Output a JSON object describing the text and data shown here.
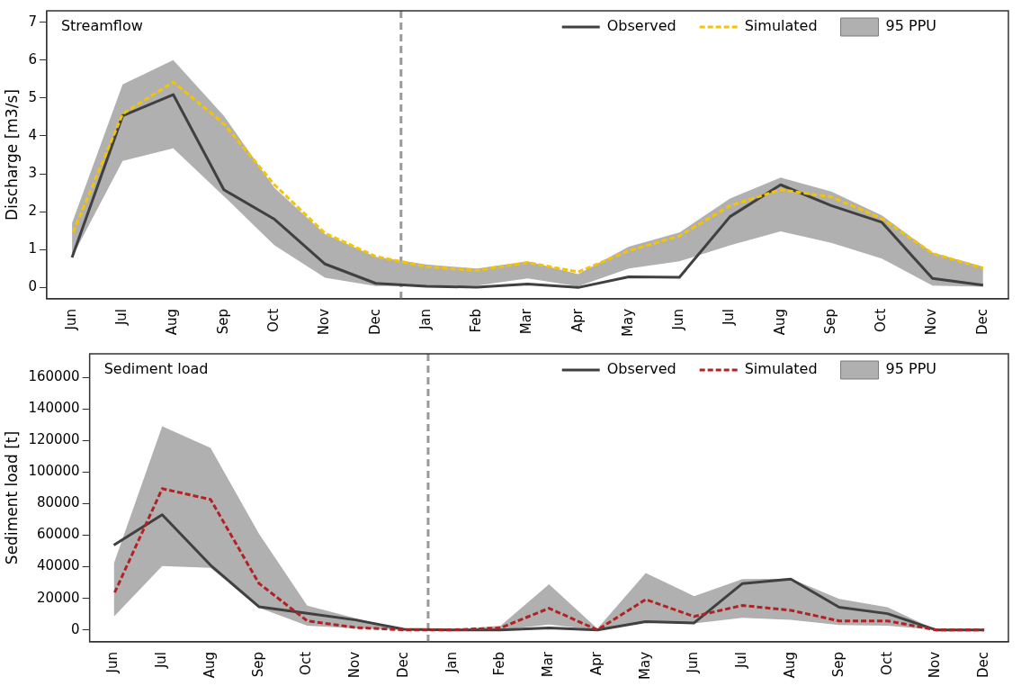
{
  "chart_data": [
    {
      "type": "line",
      "title": "Streamflow",
      "ylabel": "Discharge [m3/s]",
      "categories": [
        "Jun",
        "Jul",
        "Aug",
        "Sep",
        "Oct",
        "Nov",
        "Dec",
        "Jan",
        "Feb",
        "Mar",
        "Apr",
        "May",
        "Jun",
        "Jul",
        "Aug",
        "Sep",
        "Oct",
        "Nov",
        "Dec"
      ],
      "ylim": [
        -0.3,
        7.3
      ],
      "yticks": [
        0,
        1,
        2,
        3,
        4,
        5,
        6,
        7
      ],
      "grid": false,
      "legend": "top right",
      "marker": "none",
      "series": [
        {
          "name": "Observed",
          "color": "#404040",
          "line_style": "solid",
          "values": [
            0.79,
            4.53,
            5.09,
            2.58,
            1.8,
            0.62,
            0.11,
            0.03,
            0.01,
            0.09,
            0,
            0.28,
            0.27,
            1.87,
            2.71,
            2.16,
            1.72,
            0.24,
            0.06
          ]
        },
        {
          "name": "Simulated",
          "color": "#f5c400",
          "line_style": "dashed",
          "values": [
            1.39,
            4.58,
            5.42,
            4.32,
            2.71,
            1.43,
            0.82,
            0.55,
            0.45,
            0.66,
            0.41,
            0.97,
            1.36,
            2.16,
            2.58,
            2.39,
            1.82,
            0.9,
            0.51
          ]
        },
        {
          "name": "95 PPU",
          "type": "area",
          "color": "#b0b0b0",
          "values": [
            null,
            null,
            null,
            null,
            null,
            null,
            null,
            null,
            null,
            null,
            null,
            null,
            null,
            null,
            null,
            null,
            null,
            null,
            null
          ],
          "lower": [
            0.8,
            3.34,
            3.67,
            2.41,
            1.11,
            0.26,
            0.04,
            0.05,
            0.05,
            0.24,
            0.03,
            0.5,
            0.69,
            1.11,
            1.48,
            1.18,
            0.76,
            0.05,
            0.02
          ],
          "upper": [
            1.7,
            5.36,
            6.0,
            4.53,
            2.63,
            1.41,
            0.81,
            0.61,
            0.5,
            0.69,
            0.35,
            1.08,
            1.45,
            2.35,
            2.9,
            2.53,
            1.9,
            0.92,
            0.55
          ]
        }
      ]
    },
    {
      "type": "line",
      "title": "Sediment load",
      "ylabel": "Sediment load [t]",
      "categories": [
        "Jun",
        "Jul",
        "Aug",
        "Sep",
        "Oct",
        "Nov",
        "Dec",
        "Jan",
        "Feb",
        "Mar",
        "Apr",
        "May",
        "Jun",
        "Jul",
        "Aug",
        "Sep",
        "Oct",
        "Nov",
        "Dec"
      ],
      "ylim": [
        -7600,
        175000
      ],
      "yticks": [
        0,
        20000,
        40000,
        60000,
        80000,
        100000,
        120000,
        140000,
        160000
      ],
      "grid": false,
      "legend": "top right",
      "marker": "none",
      "series": [
        {
          "name": "Observed",
          "color": "#404040",
          "line_style": "solid",
          "values": [
            53700,
            73000,
            41000,
            14700,
            10500,
            6300,
            400,
            0,
            0,
            1300,
            0,
            5200,
            4400,
            29400,
            32200,
            14400,
            10300,
            0,
            0
          ]
        },
        {
          "name": "Simulated",
          "color": "#b22222",
          "line_style": "dashed",
          "values": [
            22500,
            89500,
            82700,
            29500,
            5700,
            1500,
            0,
            0,
            1300,
            13700,
            0,
            19300,
            8500,
            15500,
            12400,
            5700,
            5700,
            0,
            0
          ]
        },
        {
          "name": "95 PPU",
          "type": "area",
          "color": "#b0b0b0",
          "values": [
            null,
            null,
            null,
            null,
            null,
            null,
            null,
            null,
            null,
            null,
            null,
            null,
            null,
            null,
            null,
            null,
            null,
            null,
            null
          ],
          "lower": [
            8400,
            40400,
            39400,
            14100,
            2700,
            1000,
            0,
            0,
            0,
            3400,
            0,
            5700,
            4100,
            7700,
            6400,
            3100,
            2600,
            0,
            0
          ],
          "upper": [
            42100,
            129000,
            115400,
            61000,
            15400,
            7400,
            0,
            0,
            2600,
            28900,
            800,
            36100,
            21400,
            32200,
            32500,
            19600,
            14400,
            0,
            0
          ]
        }
      ]
    }
  ]
}
